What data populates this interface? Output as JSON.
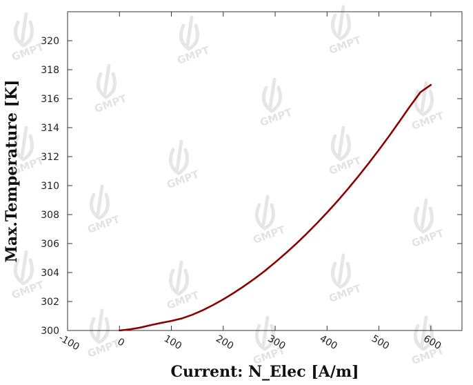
{
  "chart_data": {
    "type": "line",
    "title": "",
    "xlabel": "Current: N_Elec [A/m]",
    "ylabel": "Max.Temperature [K]",
    "xlim": [
      -100,
      660
    ],
    "ylim": [
      300,
      322
    ],
    "xticks": [
      -100,
      0,
      100,
      200,
      300,
      400,
      500,
      600
    ],
    "yticks": [
      300,
      302,
      304,
      306,
      308,
      310,
      312,
      314,
      316,
      318,
      320
    ],
    "grid": false,
    "legend": "none",
    "watermark": "GMPT",
    "series": [
      {
        "color": "#8b0000",
        "x": [
          0,
          20,
          40,
          60,
          80,
          100,
          120,
          140,
          160,
          180,
          200,
          220,
          240,
          260,
          280,
          300,
          320,
          340,
          360,
          380,
          400,
          420,
          440,
          460,
          480,
          500,
          520,
          540,
          560,
          580,
          600
        ],
        "y": [
          300.0,
          300.08,
          300.2,
          300.37,
          300.52,
          300.66,
          300.83,
          301.08,
          301.39,
          301.75,
          302.15,
          302.59,
          303.06,
          303.57,
          304.11,
          304.7,
          305.32,
          305.97,
          306.66,
          307.38,
          308.14,
          308.93,
          309.76,
          310.63,
          311.53,
          312.47,
          313.44,
          314.45,
          315.48,
          316.45,
          316.95
        ]
      }
    ]
  }
}
